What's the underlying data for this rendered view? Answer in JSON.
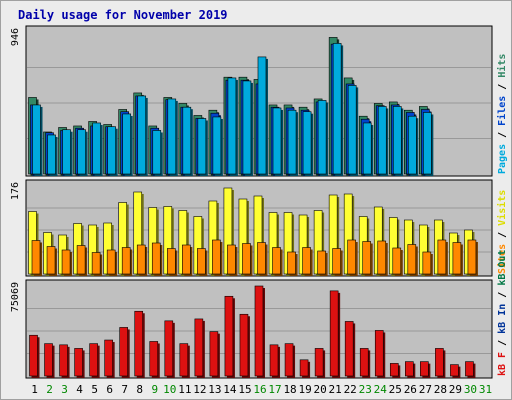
{
  "title": "Daily usage for November 2019",
  "colors": {
    "page_bg": "#ececec",
    "panel_bg": "#c0c0c0",
    "title": "#0000aa",
    "pages": "#00aadd",
    "files": "#0044cc",
    "hits": "#338866",
    "visits": "#ffff33",
    "sites": "#ff8800",
    "kbin": "#003399",
    "kbout": "#007744",
    "kbf": "#dd1111",
    "weekend_day": "#008800",
    "weekday": "#000000",
    "grid": "#999999"
  },
  "chart_data": [
    {
      "type": "bar",
      "title": "Daily usage for November 2019",
      "categories": [
        "1",
        "2",
        "3",
        "4",
        "5",
        "6",
        "7",
        "8",
        "9",
        "10",
        "11",
        "12",
        "13",
        "14",
        "15",
        "16",
        "17",
        "18",
        "19",
        "20",
        "21",
        "22",
        "23",
        "24",
        "25",
        "26",
        "27",
        "28",
        "29",
        "30",
        "31"
      ],
      "weekend_days": [
        "2",
        "3",
        "9",
        "10",
        "16",
        "17",
        "23",
        "24",
        "30",
        "31"
      ],
      "ymax_label": "946",
      "ylim": [
        0,
        946
      ],
      "series": [
        {
          "name": "Hits",
          "values": [
            510,
            280,
            310,
            320,
            350,
            330,
            430,
            540,
            320,
            510,
            470,
            390,
            425,
            645,
            645,
            630,
            460,
            460,
            445,
            500,
            910,
            640,
            385,
            470,
            480,
            425,
            450,
            0,
            0,
            0,
            0
          ]
        },
        {
          "name": "Files",
          "values": [
            460,
            275,
            290,
            305,
            320,
            315,
            415,
            520,
            305,
            495,
            445,
            370,
            405,
            625,
            625,
            600,
            445,
            440,
            425,
            480,
            865,
            600,
            365,
            455,
            460,
            410,
            430,
            0,
            0,
            0,
            0
          ]
        },
        {
          "name": "Pages",
          "values": [
            460,
            260,
            295,
            295,
            340,
            315,
            400,
            520,
            290,
            500,
            445,
            370,
            380,
            640,
            620,
            780,
            440,
            425,
            415,
            490,
            870,
            590,
            340,
            450,
            450,
            385,
            410,
            0,
            0,
            0,
            0
          ]
        }
      ]
    },
    {
      "type": "bar",
      "ymax_label": "176",
      "ylim": [
        0,
        176
      ],
      "series": [
        {
          "name": "Visits",
          "values": [
            125,
            83,
            78,
            101,
            98,
            102,
            143,
            164,
            133,
            135,
            127,
            115,
            146,
            172,
            150,
            156,
            123,
            123,
            118,
            127,
            158,
            160,
            115,
            134,
            113,
            108,
            98,
            108,
            82,
            88,
            0
          ]
        },
        {
          "name": "Sites",
          "values": [
            67,
            55,
            48,
            57,
            43,
            48,
            53,
            58,
            62,
            51,
            58,
            51,
            68,
            58,
            61,
            63,
            53,
            44,
            53,
            46,
            51,
            68,
            65,
            66,
            52,
            59,
            44,
            68,
            63,
            68,
            0
          ]
        }
      ]
    },
    {
      "type": "bar",
      "ymax_label": "75069",
      "ylim": [
        0,
        75069
      ],
      "series": [
        {
          "name": "kB F",
          "values": [
            34000,
            27000,
            26000,
            23000,
            27000,
            30000,
            40500,
            54000,
            28800,
            46000,
            27000,
            47600,
            37000,
            66500,
            51500,
            75069,
            26000,
            27000,
            13500,
            23000,
            71000,
            45500,
            23000,
            38000,
            10500,
            12000,
            12000,
            23000,
            9500,
            12000,
            0
          ]
        },
        {
          "name": "kB In",
          "values": []
        },
        {
          "name": "kB Out",
          "values": []
        }
      ]
    }
  ],
  "legend_panel1": [
    {
      "text": "Pages",
      "color": "#00aadd"
    },
    {
      "text": " / ",
      "color": "#000000"
    },
    {
      "text": "Files",
      "color": "#0044cc"
    },
    {
      "text": " / ",
      "color": "#000000"
    },
    {
      "text": "Hits",
      "color": "#338866"
    }
  ],
  "legend_panel2": [
    {
      "text": "Sites",
      "color": "#ff8800"
    },
    {
      "text": " / ",
      "color": "#000000"
    },
    {
      "text": "Visits",
      "color": "#dddd00"
    }
  ],
  "legend_panel3": [
    {
      "text": "kB F",
      "color": "#dd1111"
    },
    {
      "text": " / ",
      "color": "#000000"
    },
    {
      "text": "kB In",
      "color": "#003399"
    },
    {
      "text": " / ",
      "color": "#000000"
    },
    {
      "text": "kB Out",
      "color": "#007744"
    }
  ]
}
